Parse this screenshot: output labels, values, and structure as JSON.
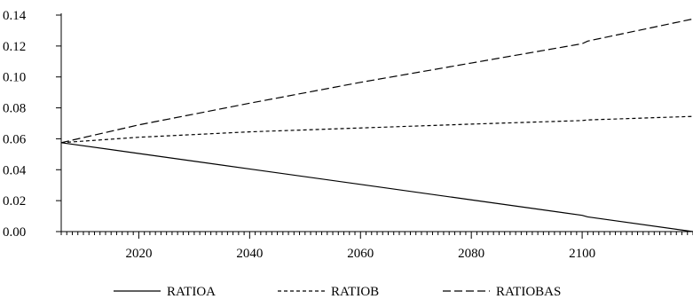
{
  "chart_data": {
    "type": "line",
    "title": "",
    "xlabel": "",
    "ylabel": "",
    "xlim": [
      2006,
      2120
    ],
    "ylim": [
      0,
      0.14
    ],
    "x_ticks": [
      2020,
      2040,
      2060,
      2080,
      2100
    ],
    "x_tick_labels": [
      "2020",
      "2040",
      "2060",
      "2080",
      "2100"
    ],
    "y_ticks": [
      0,
      0.02,
      0.04,
      0.06,
      0.08,
      0.1,
      0.12,
      0.14
    ],
    "y_tick_labels": [
      "0.00",
      "0.02",
      "0.04",
      "0.06",
      "0.08",
      "0.10",
      "0.12",
      "0.14"
    ],
    "grid": false,
    "legend_position": "bottom",
    "x": [
      2006,
      2020,
      2040,
      2060,
      2080,
      2100,
      2101,
      2120
    ],
    "series": [
      {
        "name": "RATIOA",
        "line_style": "solid",
        "values": [
          0.0575,
          0.0505,
          0.0405,
          0.0305,
          0.0205,
          0.0105,
          0.0095,
          0.0
        ]
      },
      {
        "name": "RATIOB",
        "line_style": "short-dash",
        "values": [
          0.0575,
          0.061,
          0.0645,
          0.067,
          0.0695,
          0.0718,
          0.0722,
          0.0745
        ]
      },
      {
        "name": "RATIOBAS",
        "line_style": "long-dash",
        "values": [
          0.0575,
          0.069,
          0.083,
          0.0965,
          0.109,
          0.1215,
          0.1232,
          0.1375
        ]
      }
    ],
    "color": "#000000"
  }
}
